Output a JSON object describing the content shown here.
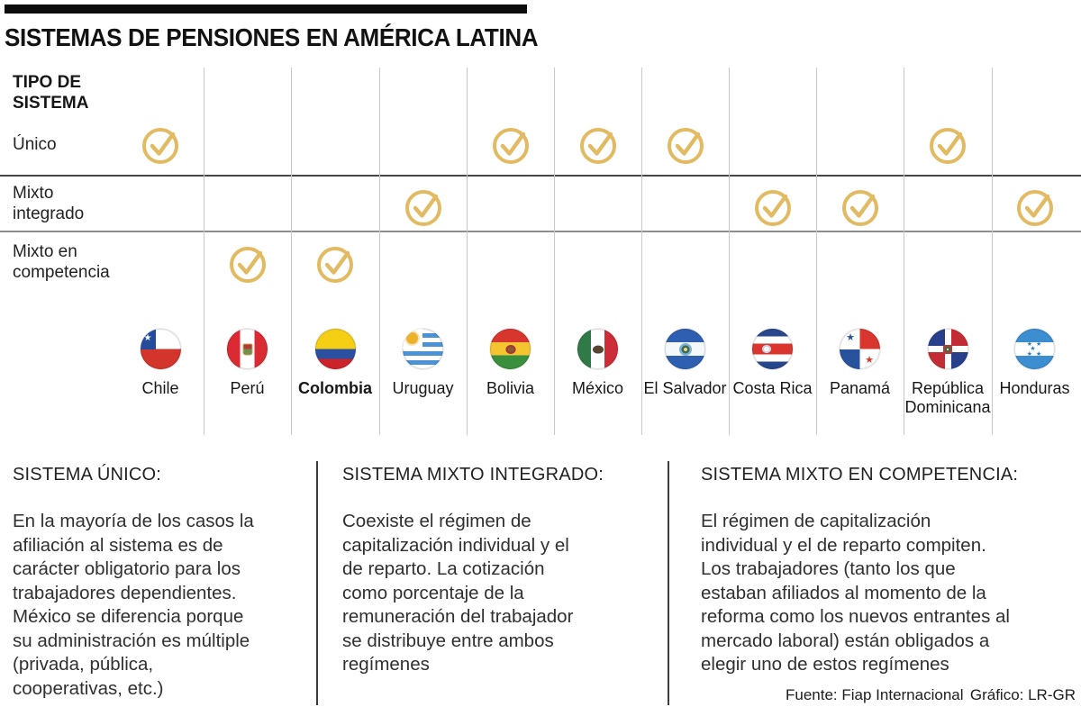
{
  "header": {
    "title": "SISTEMAS DE PENSIONES EN AMÉRICA LATINA"
  },
  "table": {
    "axis_label": "TIPO DE\nSISTEMA",
    "check_icon": "check-circle",
    "check_color": "#E2BA62",
    "rows": [
      {
        "id": "unico",
        "label": "Único",
        "checks": [
          "chile",
          "bolivia",
          "mexico",
          "el-salvador",
          "republica-dominicana"
        ]
      },
      {
        "id": "mixto-integrado",
        "label": "Mixto\nintegrado",
        "checks": [
          "uruguay",
          "costa-rica",
          "panama",
          "honduras"
        ]
      },
      {
        "id": "mixto-en-competencia",
        "label": "Mixto en\ncompetencia",
        "checks": [
          "peru",
          "colombia"
        ]
      }
    ],
    "countries": [
      {
        "id": "chile",
        "name": "Chile",
        "bold": false
      },
      {
        "id": "peru",
        "name": "Perú",
        "bold": false
      },
      {
        "id": "colombia",
        "name": "Colombia",
        "bold": true
      },
      {
        "id": "uruguay",
        "name": "Uruguay",
        "bold": false
      },
      {
        "id": "bolivia",
        "name": "Bolivia",
        "bold": false
      },
      {
        "id": "mexico",
        "name": "México",
        "bold": false
      },
      {
        "id": "el-salvador",
        "name": "El Salvador",
        "bold": false
      },
      {
        "id": "costa-rica",
        "name": "Costa Rica",
        "bold": false
      },
      {
        "id": "panama",
        "name": "Panamá",
        "bold": false
      },
      {
        "id": "republica-dominicana",
        "name": "República Dominicana",
        "bold": false
      },
      {
        "id": "honduras",
        "name": "Honduras",
        "bold": false
      }
    ]
  },
  "chart_data": {
    "type": "table",
    "title": "SISTEMAS DE PENSIONES EN AMÉRICA LATINA",
    "row_header": "TIPO DE SISTEMA",
    "categories": [
      "Chile",
      "Perú",
      "Colombia",
      "Uruguay",
      "Bolivia",
      "México",
      "El Salvador",
      "Costa Rica",
      "Panamá",
      "República Dominicana",
      "Honduras"
    ],
    "series": [
      {
        "name": "Único",
        "values": [
          1,
          0,
          0,
          0,
          1,
          1,
          1,
          0,
          0,
          1,
          0
        ]
      },
      {
        "name": "Mixto integrado",
        "values": [
          0,
          0,
          0,
          1,
          0,
          0,
          0,
          1,
          1,
          0,
          1
        ]
      },
      {
        "name": "Mixto en competencia",
        "values": [
          0,
          1,
          1,
          0,
          0,
          0,
          0,
          0,
          0,
          0,
          0
        ]
      }
    ],
    "legend_position": "none",
    "grid": true
  },
  "sections": [
    {
      "heading": "SISTEMA ÚNICO:",
      "body": "En la mayoría de los casos la\nafiliación al sistema es de\ncarácter obligatorio para los\ntrabajadores dependientes.\nMéxico se diferencia porque\nsu administración es múltiple\n(privada, pública,\ncooperativas, etc.)"
    },
    {
      "heading": "SISTEMA MIXTO INTEGRADO:",
      "body": "Coexiste el régimen de\ncapitalización individual y el\nde reparto. La cotización\ncomo porcentaje de la\nremuneración del trabajador\nse distribuye entre ambos\nregímenes"
    },
    {
      "heading": "SISTEMA MIXTO EN COMPETENCIA:",
      "body": "El régimen de capitalización\nindividual y el de reparto compiten.\nLos trabajadores (tanto los que\nestaban afiliados al momento de la\nreforma como los nuevos entrantes al\nmercado laboral) están obligados a\nelegir uno de estos regímenes"
    }
  ],
  "footer": {
    "source": "Fuente: Fiap Internacional",
    "credit": "Gráfico: LR-GR"
  }
}
